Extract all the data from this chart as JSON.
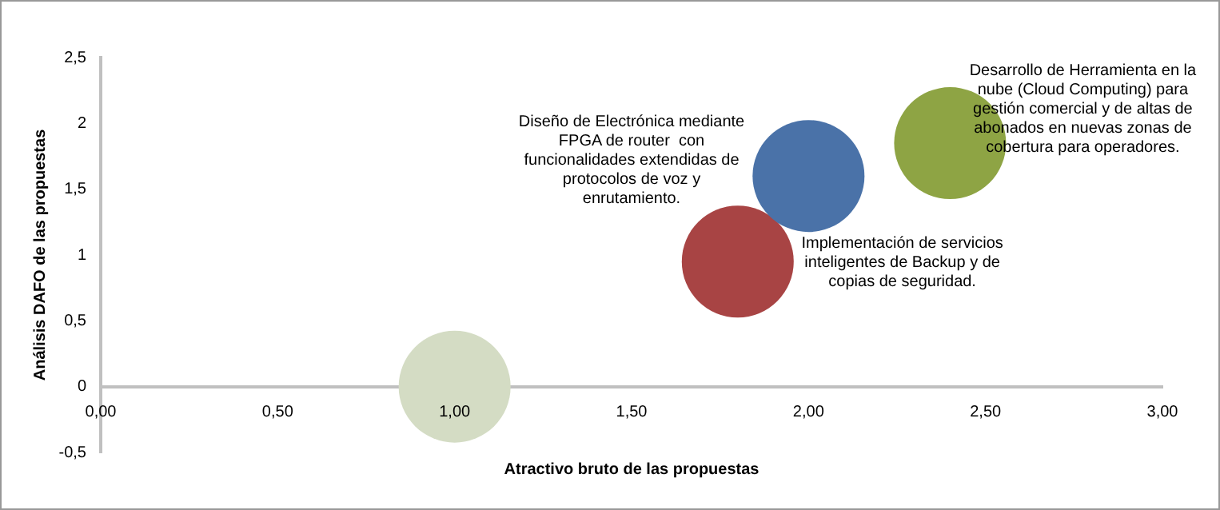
{
  "chart_data": {
    "type": "bubble",
    "xlabel": "Atractivo bruto de las propuestas",
    "ylabel": "Análisis DAFO de las propuestas",
    "x": [
      1.0,
      1.8,
      2.0,
      2.4
    ],
    "values": [
      0,
      0.95,
      1.6,
      1.85
    ],
    "sizes": [
      1,
      1,
      1,
      1
    ],
    "colors": [
      "#d4dcc4",
      "#a84444",
      "#4a72a8",
      "#8ea444"
    ],
    "xlim": [
      0,
      3
    ],
    "xticks": [
      {
        "value": 0,
        "label": "0,00"
      },
      {
        "value": 0.5,
        "label": "0,50"
      },
      {
        "value": 1,
        "label": "1,00"
      },
      {
        "value": 1.5,
        "label": "1,50"
      },
      {
        "value": 2,
        "label": "2,00"
      },
      {
        "value": 2.5,
        "label": "2,50"
      },
      {
        "value": 3,
        "label": "3,00"
      }
    ],
    "ylim": [
      -0.5,
      2.5
    ],
    "yticks": [
      {
        "value": -0.5,
        "label": "-0,5"
      },
      0,
      {
        "value": 0.5,
        "label": "0,5"
      },
      1,
      {
        "value": 1.5,
        "label": "1,5"
      },
      2,
      {
        "value": 2.5,
        "label": "2,5"
      }
    ],
    "grid": false,
    "legend": false,
    "annotations": [
      "Diseño de Electrónica mediante\nFPGA de router  con\nfuncionalidades extendidas de\nprotocolos de voz y\nenrutamiento.",
      "Implementación de servicios\ninteligentes de Backup y de\ncopias de seguridad.",
      "Desarrollo de Herramienta en la\nnube (Cloud Computing) para\ngestión comercial y de altas de\nabonados en nuevas zonas de\ncobertura para operadores."
    ]
  }
}
